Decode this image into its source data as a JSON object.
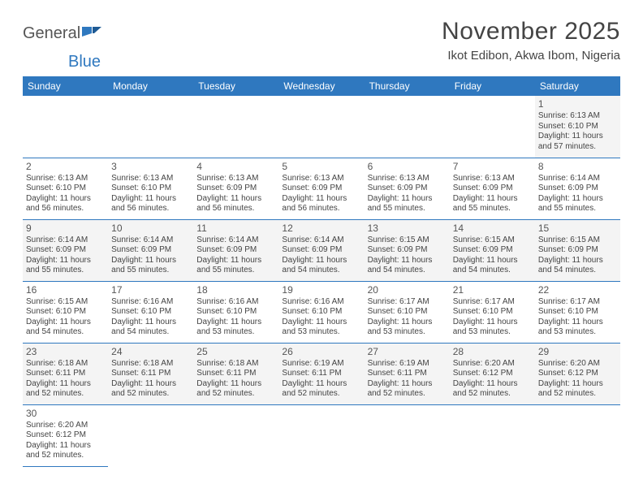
{
  "logo": {
    "part1": "General",
    "part2": "Blue"
  },
  "title": "November 2025",
  "location": "Ikot Edibon, Akwa Ibom, Nigeria",
  "colors": {
    "header_bg": "#2f78bf",
    "header_text": "#ffffff",
    "row_alt_bg": "#f4f4f4",
    "row_bg": "#ffffff",
    "border": "#2f78bf",
    "text": "#444444",
    "logo_blue": "#2f78bf",
    "logo_gray": "#555555"
  },
  "day_headers": [
    "Sunday",
    "Monday",
    "Tuesday",
    "Wednesday",
    "Thursday",
    "Friday",
    "Saturday"
  ],
  "sunrise_prefix": "Sunrise: ",
  "sunset_prefix": "Sunset: ",
  "daylight_prefix": "Daylight: ",
  "weeks": [
    [
      null,
      null,
      null,
      null,
      null,
      null,
      {
        "n": "1",
        "sunrise": "6:13 AM",
        "sunset": "6:10 PM",
        "daylight": "11 hours and 57 minutes."
      }
    ],
    [
      {
        "n": "2",
        "sunrise": "6:13 AM",
        "sunset": "6:10 PM",
        "daylight": "11 hours and 56 minutes."
      },
      {
        "n": "3",
        "sunrise": "6:13 AM",
        "sunset": "6:10 PM",
        "daylight": "11 hours and 56 minutes."
      },
      {
        "n": "4",
        "sunrise": "6:13 AM",
        "sunset": "6:09 PM",
        "daylight": "11 hours and 56 minutes."
      },
      {
        "n": "5",
        "sunrise": "6:13 AM",
        "sunset": "6:09 PM",
        "daylight": "11 hours and 56 minutes."
      },
      {
        "n": "6",
        "sunrise": "6:13 AM",
        "sunset": "6:09 PM",
        "daylight": "11 hours and 55 minutes."
      },
      {
        "n": "7",
        "sunrise": "6:13 AM",
        "sunset": "6:09 PM",
        "daylight": "11 hours and 55 minutes."
      },
      {
        "n": "8",
        "sunrise": "6:14 AM",
        "sunset": "6:09 PM",
        "daylight": "11 hours and 55 minutes."
      }
    ],
    [
      {
        "n": "9",
        "sunrise": "6:14 AM",
        "sunset": "6:09 PM",
        "daylight": "11 hours and 55 minutes."
      },
      {
        "n": "10",
        "sunrise": "6:14 AM",
        "sunset": "6:09 PM",
        "daylight": "11 hours and 55 minutes."
      },
      {
        "n": "11",
        "sunrise": "6:14 AM",
        "sunset": "6:09 PM",
        "daylight": "11 hours and 55 minutes."
      },
      {
        "n": "12",
        "sunrise": "6:14 AM",
        "sunset": "6:09 PM",
        "daylight": "11 hours and 54 minutes."
      },
      {
        "n": "13",
        "sunrise": "6:15 AM",
        "sunset": "6:09 PM",
        "daylight": "11 hours and 54 minutes."
      },
      {
        "n": "14",
        "sunrise": "6:15 AM",
        "sunset": "6:09 PM",
        "daylight": "11 hours and 54 minutes."
      },
      {
        "n": "15",
        "sunrise": "6:15 AM",
        "sunset": "6:09 PM",
        "daylight": "11 hours and 54 minutes."
      }
    ],
    [
      {
        "n": "16",
        "sunrise": "6:15 AM",
        "sunset": "6:10 PM",
        "daylight": "11 hours and 54 minutes."
      },
      {
        "n": "17",
        "sunrise": "6:16 AM",
        "sunset": "6:10 PM",
        "daylight": "11 hours and 54 minutes."
      },
      {
        "n": "18",
        "sunrise": "6:16 AM",
        "sunset": "6:10 PM",
        "daylight": "11 hours and 53 minutes."
      },
      {
        "n": "19",
        "sunrise": "6:16 AM",
        "sunset": "6:10 PM",
        "daylight": "11 hours and 53 minutes."
      },
      {
        "n": "20",
        "sunrise": "6:17 AM",
        "sunset": "6:10 PM",
        "daylight": "11 hours and 53 minutes."
      },
      {
        "n": "21",
        "sunrise": "6:17 AM",
        "sunset": "6:10 PM",
        "daylight": "11 hours and 53 minutes."
      },
      {
        "n": "22",
        "sunrise": "6:17 AM",
        "sunset": "6:10 PM",
        "daylight": "11 hours and 53 minutes."
      }
    ],
    [
      {
        "n": "23",
        "sunrise": "6:18 AM",
        "sunset": "6:11 PM",
        "daylight": "11 hours and 52 minutes."
      },
      {
        "n": "24",
        "sunrise": "6:18 AM",
        "sunset": "6:11 PM",
        "daylight": "11 hours and 52 minutes."
      },
      {
        "n": "25",
        "sunrise": "6:18 AM",
        "sunset": "6:11 PM",
        "daylight": "11 hours and 52 minutes."
      },
      {
        "n": "26",
        "sunrise": "6:19 AM",
        "sunset": "6:11 PM",
        "daylight": "11 hours and 52 minutes."
      },
      {
        "n": "27",
        "sunrise": "6:19 AM",
        "sunset": "6:11 PM",
        "daylight": "11 hours and 52 minutes."
      },
      {
        "n": "28",
        "sunrise": "6:20 AM",
        "sunset": "6:12 PM",
        "daylight": "11 hours and 52 minutes."
      },
      {
        "n": "29",
        "sunrise": "6:20 AM",
        "sunset": "6:12 PM",
        "daylight": "11 hours and 52 minutes."
      }
    ],
    [
      {
        "n": "30",
        "sunrise": "6:20 AM",
        "sunset": "6:12 PM",
        "daylight": "11 hours and 52 minutes."
      },
      null,
      null,
      null,
      null,
      null,
      null
    ]
  ]
}
